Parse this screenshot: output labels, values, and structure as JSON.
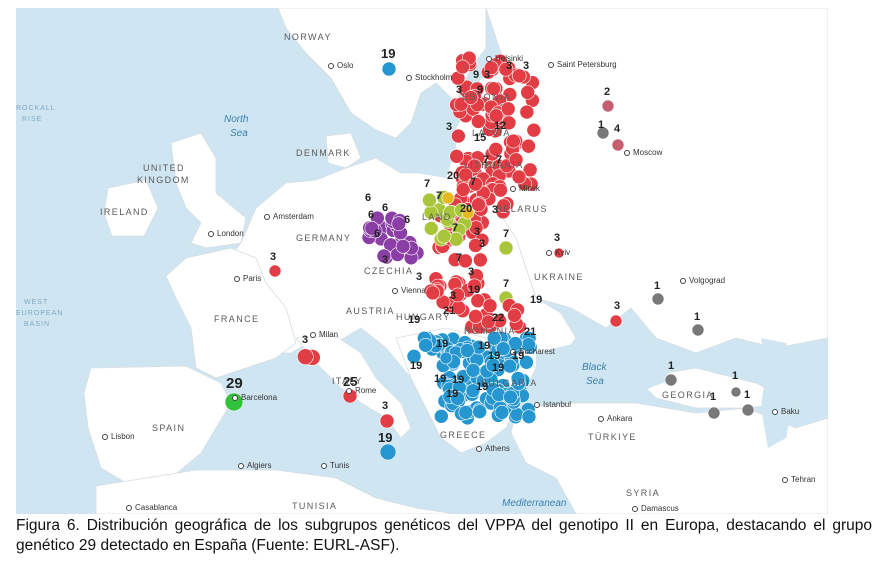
{
  "countries": {
    "norway": "NORWAY",
    "denmark": "DENMARK",
    "united_kingdom_1": "UNITED",
    "united_kingdom_2": "KINGDOM",
    "ireland": "IRELAND",
    "germany": "GERMANY",
    "france": "FRANCE",
    "spain": "SPAIN",
    "czechia": "CZECHIA",
    "austria": "AUSTRIA",
    "hungary": "HUNGARY",
    "romania": "ROMANIA",
    "bulgaria": "BULGARIA",
    "greece": "GREECE",
    "italy": "ITALY",
    "belarus": "BELARUS",
    "ukraine": "UKRAINE",
    "estonia": "ESTONIA",
    "latvia": "LATVIA",
    "lithuania": "LITHUANIA",
    "poland": "LAND",
    "georgia": "GEORGIA",
    "turkiye": "TÜRKIYE",
    "tunisia": "TUNISIA",
    "syria": "SYRIA"
  },
  "seas": {
    "north_1": "North",
    "north_2": "Sea",
    "black_1": "Black",
    "black_2": "Sea",
    "mediterranean": "Mediterranean",
    "rockall_1": "ROCKALL",
    "rockall_2": "RISE",
    "west_1": "WEST",
    "west_2": "EUROPEAN",
    "west_3": "BASIN"
  },
  "cities": {
    "oslo": "Oslo",
    "stockholm": "Stockholm",
    "helsinki": "Helsinki",
    "saint_petersburg": "Saint Petersburg",
    "moscow": "Moscow",
    "minsk": "Minsk",
    "kyiv": "Kyiv",
    "volgograd": "Volgograd",
    "amsterdam": "Amsterdam",
    "london": "London",
    "paris": "Paris",
    "milan": "Milan",
    "vienna": "Vienna",
    "rome": "Rome",
    "barcelona": "Barcelona",
    "lisbon": "Lisbon",
    "algiers": "Algiers",
    "tunis": "Tunis",
    "casablanca": "Casablanca",
    "athens": "Athens",
    "istanbul": "Istanbul",
    "ankara": "Ankara",
    "bucharest": "Bucharest",
    "damascus": "Damascus",
    "baku": "Baku",
    "tehran": "Tehran"
  },
  "legend_colors": {
    "group_3": "#e23d45",
    "group_19": "#2596cf",
    "group_6": "#8b3fa6",
    "group_7": "#a9c63b",
    "group_29": "#2fc23a",
    "group_1": "#787878",
    "group_2_4": "#c55f70",
    "group_20": "#e8b820"
  },
  "cluster_numbers": {
    "n_19_oslo": "19",
    "n_9": "9",
    "n_3_a": "3",
    "n_3_b": "3",
    "n_3_c": "3",
    "n_9b": "9",
    "n_3_d": "3",
    "n_3_e": "3",
    "n_12": "12",
    "n_15": "15",
    "n_7_a": "7",
    "n_7_b": "7",
    "n_7_c": "7",
    "n_20_a": "20",
    "n_7_d": "7",
    "n_6_a": "6",
    "n_6_b": "6",
    "n_6_c": "6",
    "n_6_d": "6",
    "n_6_e": "6",
    "n_20_b": "20",
    "n_7_e": "7",
    "n_3_f": "3",
    "n_3_g": "3",
    "n_3_h": "3",
    "n_7_f": "7",
    "n_3_kyiv": "3",
    "n_3_paris": "3",
    "n_3_i": "3",
    "n_7_g": "7",
    "n_19_a": "19",
    "n_3_j": "3",
    "n_19_b": "19",
    "n_21_a": "21",
    "n_22": "22",
    "n_19_c": "19",
    "n_21_b": "21",
    "n_19_d": "19",
    "n_19_e": "19",
    "n_19_f": "19",
    "n_19_g": "19",
    "n_19_h": "19",
    "n_19_i": "19",
    "n_19_j": "19",
    "n_3_milan": "3",
    "n_25": "25",
    "n_3_italy": "3",
    "n_19_sicily": "19",
    "n_29": "29",
    "n_3_east": "3",
    "n_1_volgo": "1",
    "n_1_b": "1",
    "n_1_c": "1",
    "n_1_d": "1",
    "n_1_e": "1",
    "n_1_moscow": "1",
    "n_2": "2",
    "n_4": "4",
    "n_3_k": "3",
    "n_7_h": "7",
    "n_19_k": "19",
    "n_19_l": "19",
    "n_19_m": "19",
    "n_7_i": "7",
    "n_3_l": "3",
    "n_1_f": "1"
  },
  "caption": "Figura 6. Distribución geográfica de los subgrupos genéticos del VPPA del genotipo II en Europa, destacando el grupo genético 29 detectado en España (Fuente: EURL-ASF)."
}
